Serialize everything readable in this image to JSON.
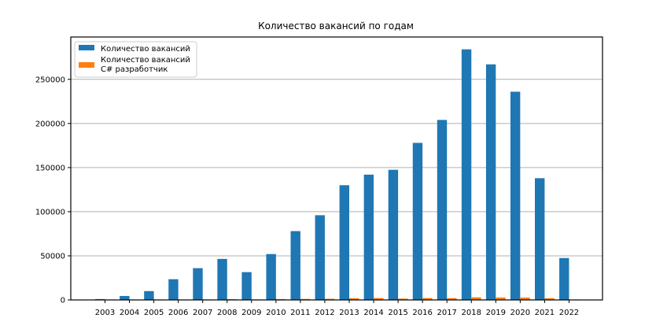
{
  "chart_data": {
    "type": "bar",
    "title": "Количество вакансий по годам",
    "xlabel": "",
    "ylabel": "",
    "categories": [
      "2003",
      "2004",
      "2005",
      "2006",
      "2007",
      "2008",
      "2009",
      "2010",
      "2011",
      "2012",
      "2013",
      "2014",
      "2015",
      "2016",
      "2017",
      "2018",
      "2019",
      "2020",
      "2021",
      "2022"
    ],
    "series": [
      {
        "name": "Количество вакансий",
        "color": "#1f77b4",
        "values": [
          1000,
          4500,
          10000,
          23500,
          36000,
          46500,
          31500,
          52000,
          78000,
          96000,
          130000,
          142000,
          147500,
          178000,
          204000,
          284000,
          267000,
          236000,
          138000,
          47500
        ]
      },
      {
        "name": "Количество вакансий\nC# разработчик",
        "color": "#ff7f0e",
        "values": [
          50,
          150,
          300,
          500,
          600,
          900,
          600,
          1000,
          1200,
          1300,
          2000,
          2200,
          1500,
          2200,
          2100,
          3000,
          2800,
          2700,
          2000,
          500
        ]
      }
    ],
    "yticks": [
      0,
      50000,
      100000,
      150000,
      200000,
      250000
    ],
    "ytick_labels": [
      "0",
      "50000",
      "100000",
      "150000",
      "200000",
      "250000"
    ],
    "ylim": [
      0,
      298000
    ],
    "grid": "y-major",
    "legend_position": "top-left"
  }
}
